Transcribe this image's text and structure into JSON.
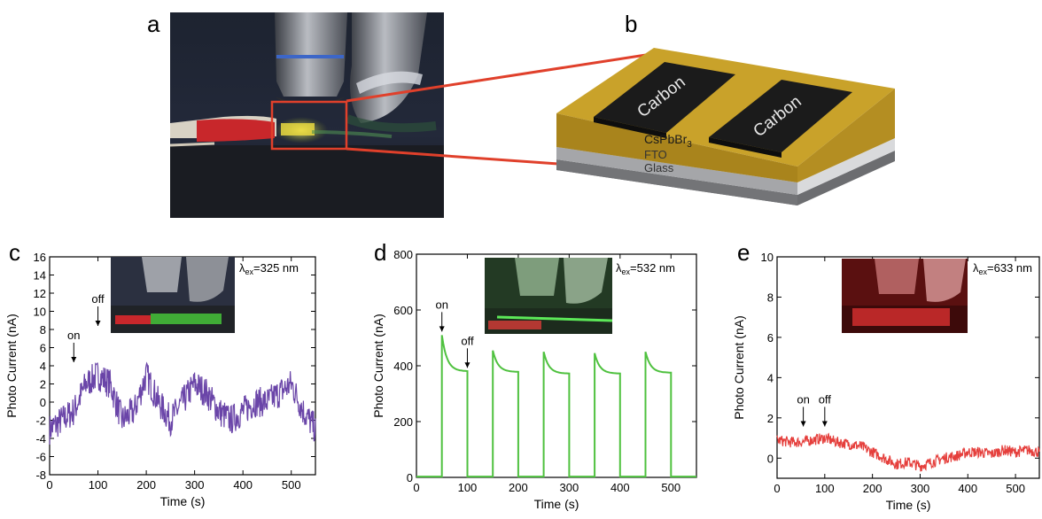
{
  "panels": {
    "a": {
      "letter": "a"
    },
    "b": {
      "letter": "b",
      "layers": {
        "top": "CsPbBr",
        "top_sub": "3",
        "middle": "FTO",
        "bottom": "Glass"
      },
      "electrodes": [
        "Carbon",
        "Carbon"
      ]
    },
    "c": {
      "letter": "c"
    },
    "d": {
      "letter": "d"
    },
    "e": {
      "letter": "e"
    }
  },
  "colors": {
    "violet": "#6a45a8",
    "green": "#4fc13f",
    "red": "#e53f3c",
    "zoom_line": "#e0402b",
    "gold": "#c9a22a"
  },
  "chart_data": [
    {
      "id": "c",
      "type": "line",
      "xlabel": "Time (s)",
      "ylabel": "Photo Current (nA)",
      "xlim": [
        0,
        550
      ],
      "ylim": [
        -8,
        16
      ],
      "xticks": [
        0,
        100,
        200,
        300,
        400,
        500
      ],
      "yticks": [
        -8,
        -6,
        -4,
        -2,
        0,
        2,
        4,
        6,
        8,
        10,
        12,
        14,
        16
      ],
      "excitation": "λex=325 nm",
      "exc_main": "λ",
      "exc_sub": "ex",
      "exc_rest": "=325 nm",
      "annotations": [
        {
          "text": "on",
          "x": 50,
          "y": 4
        },
        {
          "text": "off",
          "x": 100,
          "y": 8
        }
      ],
      "color": "#6a45a8",
      "series": [
        {
          "x": [
            0,
            25,
            50,
            75,
            100,
            125,
            150,
            175,
            200,
            225,
            250,
            275,
            300,
            325,
            350,
            375,
            400,
            425,
            450,
            475,
            500,
            525,
            550
          ],
          "y": [
            -3,
            -2,
            -1,
            2,
            3,
            2,
            -2,
            -1,
            3,
            0,
            -2,
            0,
            2,
            1,
            -1,
            -2,
            -1,
            0,
            0,
            1,
            2,
            -1,
            -3
          ]
        }
      ]
    },
    {
      "id": "d",
      "type": "line",
      "xlabel": "Time (s)",
      "ylabel": "Photo Current (nA)",
      "xlim": [
        0,
        550
      ],
      "ylim": [
        0,
        800
      ],
      "xticks": [
        0,
        100,
        200,
        300,
        400,
        500
      ],
      "yticks": [
        0,
        200,
        400,
        600,
        800
      ],
      "excitation": "λex=532 nm",
      "exc_main": "λ",
      "exc_sub": "ex",
      "exc_rest": "=532 nm",
      "annotations": [
        {
          "text": "on",
          "x": 50,
          "y": 510
        },
        {
          "text": "off",
          "x": 100,
          "y": 380
        }
      ],
      "color": "#4fc13f",
      "cycles": [
        {
          "on": 50,
          "off": 100,
          "peak": 510,
          "plateau": 380
        },
        {
          "on": 150,
          "off": 200,
          "peak": 455,
          "plateau": 378
        },
        {
          "on": 250,
          "off": 300,
          "peak": 450,
          "plateau": 372
        },
        {
          "on": 350,
          "off": 400,
          "peak": 445,
          "plateau": 372
        },
        {
          "on": 450,
          "off": 500,
          "peak": 450,
          "plateau": 375
        }
      ],
      "baseline": 3
    },
    {
      "id": "e",
      "type": "line",
      "xlabel": "Time (s)",
      "ylabel": "Photo Current (nA)",
      "xlim": [
        0,
        550
      ],
      "ylim": [
        -1,
        10
      ],
      "xticks": [
        0,
        100,
        200,
        300,
        400,
        500
      ],
      "yticks": [
        0,
        2,
        4,
        6,
        8,
        10
      ],
      "excitation": "λex=633 nm",
      "exc_main": "λ",
      "exc_sub": "ex",
      "exc_rest": "=633 nm",
      "annotations": [
        {
          "text": "on",
          "x": 55,
          "y": 1.4
        },
        {
          "text": "off",
          "x": 100,
          "y": 1.4
        }
      ],
      "color": "#e53f3c",
      "series": [
        {
          "x": [
            0,
            25,
            50,
            75,
            100,
            125,
            150,
            175,
            200,
            225,
            250,
            275,
            300,
            325,
            350,
            375,
            400,
            425,
            450,
            475,
            500,
            525,
            550
          ],
          "y": [
            0.9,
            0.8,
            0.8,
            0.9,
            1.0,
            0.8,
            0.7,
            0.6,
            0.3,
            0.0,
            -0.3,
            -0.2,
            -0.4,
            -0.2,
            0.0,
            0.1,
            0.3,
            0.3,
            0.2,
            0.4,
            0.3,
            0.4,
            0.3
          ]
        }
      ]
    }
  ]
}
